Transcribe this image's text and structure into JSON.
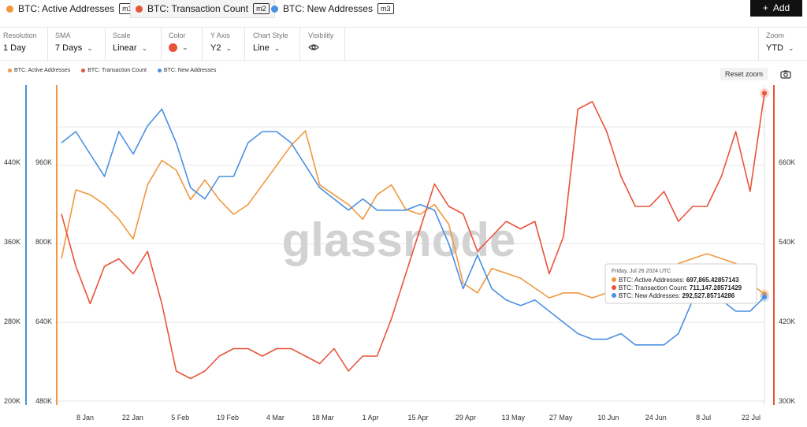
{
  "tabs": [
    {
      "label": "BTC: Active Addresses",
      "badge": "m1",
      "color": "#f0983e"
    },
    {
      "label": "BTC: Transaction Count",
      "badge": "m2",
      "color": "#e8543a"
    },
    {
      "label": "BTC: New Addresses",
      "badge": "m3",
      "color": "#4a90e2"
    }
  ],
  "add_label": "Add",
  "controls": {
    "resolution": {
      "label": "Resolution",
      "value": "1 Day"
    },
    "sma": {
      "label": "SMA",
      "value": "7 Days"
    },
    "scale": {
      "label": "Scale",
      "value": "Linear"
    },
    "color": {
      "label": "Color",
      "value": "#e8543a"
    },
    "yaxis": {
      "label": "Y Axis",
      "value": "Y2"
    },
    "style": {
      "label": "Chart Style",
      "value": "Line"
    },
    "visibility": {
      "label": "Visibility"
    },
    "zoom": {
      "label": "Zoom",
      "value": "YTD"
    }
  },
  "reset_label": "Reset zoom",
  "watermark": "glassnode",
  "icons": {
    "add": "plus-icon",
    "visibility": "eye-icon",
    "camera": "camera-icon",
    "dropdown": "chevron-down-icon"
  },
  "chart_data": {
    "type": "line",
    "x_ticks": [
      "8 Jan",
      "22 Jan",
      "5 Feb",
      "19 Feb",
      "4 Mar",
      "18 Mar",
      "1 Apr",
      "15 Apr",
      "29 Apr",
      "13 May",
      "27 May",
      "10 Jun",
      "24 Jun",
      "8 Jul",
      "22 Jul"
    ],
    "axes": {
      "new_addresses": {
        "range": [
          200000,
          480000
        ],
        "ticks": [
          "200K",
          "280K",
          "360K",
          "440K"
        ]
      },
      "active_addresses": {
        "range": [
          480000,
          1120000
        ],
        "ticks": [
          "480K",
          "640K",
          "800K",
          "960K"
        ]
      },
      "transaction_count": {
        "range": [
          300000,
          720000
        ],
        "ticks": [
          "300K",
          "420K",
          "540K",
          "660K"
        ]
      }
    },
    "series": [
      {
        "name": "BTC: Active Addresses",
        "color": "#f0983e",
        "axis": "active_addresses",
        "values": [
          770000,
          910000,
          900000,
          880000,
          850000,
          810000,
          920000,
          970000,
          950000,
          890000,
          930000,
          890000,
          860000,
          880000,
          920000,
          960000,
          1000000,
          1030000,
          920000,
          900000,
          880000,
          850000,
          900000,
          920000,
          870000,
          860000,
          880000,
          840000,
          720000,
          700000,
          750000,
          740000,
          730000,
          710000,
          690000,
          700000,
          700000,
          690000,
          700000,
          720000,
          730000,
          740000,
          730000,
          760000,
          770000,
          780000,
          770000,
          760000,
          720000,
          697865
        ]
      },
      {
        "name": "BTC: Transaction Count",
        "color": "#e8543a",
        "axis": "transaction_count",
        "values": [
          550000,
          480000,
          430000,
          480000,
          490000,
          470000,
          500000,
          430000,
          340000,
          330000,
          340000,
          360000,
          370000,
          370000,
          360000,
          370000,
          370000,
          360000,
          350000,
          370000,
          340000,
          360000,
          360000,
          410000,
          470000,
          530000,
          590000,
          560000,
          550000,
          500000,
          520000,
          540000,
          530000,
          540000,
          470000,
          520000,
          690000,
          700000,
          660000,
          600000,
          560000,
          560000,
          580000,
          540000,
          560000,
          560000,
          600000,
          660000,
          580000,
          711147
        ]
      },
      {
        "name": "BTC: New Addresses",
        "color": "#4a90e2",
        "axis": "new_addresses",
        "values": [
          430000,
          440000,
          420000,
          400000,
          440000,
          420000,
          445000,
          460000,
          430000,
          390000,
          380000,
          400000,
          400000,
          430000,
          440000,
          440000,
          430000,
          410000,
          390000,
          380000,
          370000,
          380000,
          370000,
          370000,
          370000,
          375000,
          370000,
          340000,
          300000,
          330000,
          300000,
          290000,
          285000,
          290000,
          280000,
          270000,
          260000,
          255000,
          255000,
          260000,
          250000,
          250000,
          250000,
          260000,
          290000,
          310000,
          290000,
          280000,
          280000,
          292528
        ]
      }
    ],
    "tooltip": {
      "date": "Friday, Jul 26 2024 UTC",
      "rows": [
        {
          "label": "BTC: Active Addresses:",
          "value": "697,865.42857143",
          "color": "#f0983e"
        },
        {
          "label": "BTC: Transaction Count:",
          "value": "711,147.28571429",
          "color": "#e8543a"
        },
        {
          "label": "BTC: New Addresses:",
          "value": "292,527.85714286",
          "color": "#4a90e2"
        }
      ]
    }
  }
}
